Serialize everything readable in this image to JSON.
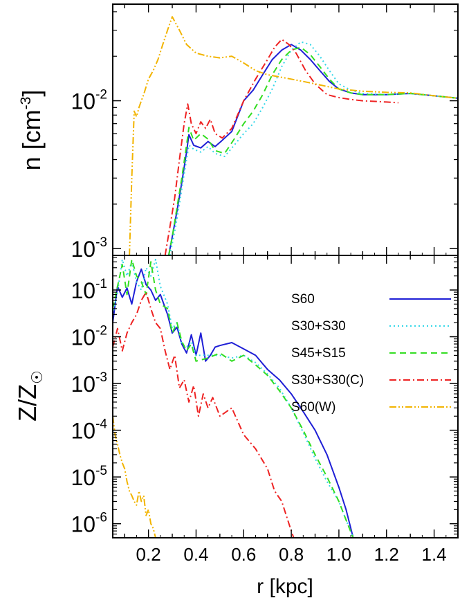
{
  "colors": {
    "S60": "#1f1fd6",
    "S30+S30": "#33d7e8",
    "S45+S15": "#33dd22",
    "S30+S30(C)": "#ee2222",
    "S60(W)": "#f2b400"
  },
  "chart_data": [
    {
      "type": "line",
      "panel": "top",
      "ylabel": "n [cm-3]",
      "ylabel_main": "n [cm",
      "ylabel_exp": "-3",
      "ylabel_close": "]",
      "yscale": "log",
      "ylim": [
        0.0009,
        0.045
      ],
      "xlim": [
        0.05,
        1.5
      ],
      "yticks": [
        {
          "value": 0.01,
          "base": "10",
          "exp": "-2"
        },
        {
          "value": 0.001,
          "base": "10",
          "exp": "-3"
        }
      ],
      "series": [
        {
          "name": "S60",
          "dash": "solid",
          "x": [
            0.285,
            0.3,
            0.32,
            0.34,
            0.36,
            0.37,
            0.39,
            0.42,
            0.45,
            0.48,
            0.51,
            0.55,
            0.6,
            0.64,
            0.68,
            0.72,
            0.76,
            0.8,
            0.84,
            0.88,
            0.92,
            0.96,
            1.0,
            1.05,
            1.1,
            1.2,
            1.3,
            1.4,
            1.5
          ],
          "y": [
            0.0009,
            0.0012,
            0.0018,
            0.0028,
            0.0045,
            0.0059,
            0.005,
            0.0048,
            0.0053,
            0.0049,
            0.0054,
            0.0062,
            0.01,
            0.0118,
            0.015,
            0.019,
            0.022,
            0.024,
            0.022,
            0.019,
            0.016,
            0.0135,
            0.012,
            0.0113,
            0.011,
            0.011,
            0.0112,
            0.0108,
            0.0104
          ]
        },
        {
          "name": "S30+S30",
          "dash": "dot",
          "x": [
            0.29,
            0.31,
            0.33,
            0.35,
            0.37,
            0.39,
            0.42,
            0.45,
            0.48,
            0.52,
            0.56,
            0.6,
            0.64,
            0.68,
            0.72,
            0.76,
            0.8,
            0.84,
            0.88,
            0.92,
            0.96,
            1.0,
            1.05,
            1.1,
            1.2,
            1.3,
            1.4,
            1.5
          ],
          "y": [
            0.0009,
            0.0013,
            0.002,
            0.0032,
            0.005,
            0.0047,
            0.0045,
            0.0049,
            0.0044,
            0.0042,
            0.005,
            0.006,
            0.007,
            0.009,
            0.012,
            0.017,
            0.022,
            0.025,
            0.024,
            0.02,
            0.016,
            0.013,
            0.0118,
            0.0112,
            0.011,
            0.0112,
            0.0108,
            0.0104
          ]
        },
        {
          "name": "S45+S15",
          "dash": "dash",
          "x": [
            0.285,
            0.3,
            0.32,
            0.34,
            0.36,
            0.37,
            0.39,
            0.42,
            0.45,
            0.48,
            0.52,
            0.56,
            0.6,
            0.64,
            0.68,
            0.72,
            0.76,
            0.8,
            0.84,
            0.88,
            0.92,
            0.96,
            1.0,
            1.05,
            1.1,
            1.2,
            1.3,
            1.4,
            1.5
          ],
          "y": [
            0.0009,
            0.0012,
            0.0019,
            0.003,
            0.005,
            0.0066,
            0.0054,
            0.006,
            0.0055,
            0.0046,
            0.0044,
            0.0055,
            0.007,
            0.0085,
            0.011,
            0.015,
            0.019,
            0.022,
            0.023,
            0.0205,
            0.017,
            0.014,
            0.012,
            0.0113,
            0.011,
            0.011,
            0.0112,
            0.0108,
            0.0104
          ]
        },
        {
          "name": "S30+S30(C)",
          "dash": "dashdot",
          "x": [
            0.27,
            0.29,
            0.31,
            0.33,
            0.35,
            0.365,
            0.38,
            0.4,
            0.42,
            0.44,
            0.46,
            0.48,
            0.51,
            0.55,
            0.6,
            0.65,
            0.7,
            0.73,
            0.76,
            0.79,
            0.82,
            0.86,
            0.9,
            0.95,
            1.0,
            1.05,
            1.1,
            1.2,
            1.25
          ],
          "y": [
            0.0009,
            0.0014,
            0.0022,
            0.004,
            0.007,
            0.0095,
            0.007,
            0.006,
            0.0072,
            0.0065,
            0.0075,
            0.006,
            0.0056,
            0.0065,
            0.01,
            0.014,
            0.019,
            0.023,
            0.026,
            0.024,
            0.021,
            0.016,
            0.013,
            0.011,
            0.0105,
            0.0102,
            0.01,
            0.0098,
            0.0097
          ]
        },
        {
          "name": "S60(W)",
          "dash": "dashdotdot",
          "x": [
            0.12,
            0.13,
            0.14,
            0.15,
            0.16,
            0.17,
            0.18,
            0.2,
            0.22,
            0.24,
            0.26,
            0.28,
            0.3,
            0.33,
            0.36,
            0.4,
            0.45,
            0.5,
            0.55,
            0.6,
            0.65,
            0.7,
            0.75,
            0.8,
            0.85,
            0.9,
            0.95,
            1.0,
            1.1,
            1.2,
            1.3,
            1.4,
            1.5
          ],
          "y": [
            0.0009,
            0.003,
            0.0085,
            0.0078,
            0.009,
            0.01,
            0.011,
            0.014,
            0.016,
            0.019,
            0.024,
            0.03,
            0.037,
            0.03,
            0.024,
            0.021,
            0.02,
            0.0195,
            0.02,
            0.018,
            0.016,
            0.015,
            0.0145,
            0.014,
            0.0135,
            0.013,
            0.0125,
            0.012,
            0.0116,
            0.0114,
            0.0113,
            0.0108,
            0.0104
          ]
        }
      ]
    },
    {
      "type": "line",
      "panel": "bottom",
      "ylabel": "Z/Z☉",
      "ylabel_main": "Z/Z",
      "ylabel_sub": "☉",
      "xlabel": "r [kpc]",
      "yscale": "log",
      "ylim": [
        5e-07,
        0.55
      ],
      "xlim": [
        0.05,
        1.5
      ],
      "xticks": [
        "0.2",
        "0.4",
        "0.6",
        "0.8",
        "1.0",
        "1.2",
        "1.4"
      ],
      "xtick_values": [
        0.2,
        0.4,
        0.6,
        0.8,
        1.0,
        1.2,
        1.4
      ],
      "yticks": [
        {
          "value": 0.1,
          "base": "10",
          "exp": "-1"
        },
        {
          "value": 0.01,
          "base": "10",
          "exp": "-2"
        },
        {
          "value": 0.001,
          "base": "10",
          "exp": "-3"
        },
        {
          "value": 0.0001,
          "base": "10",
          "exp": "-4"
        },
        {
          "value": 1e-05,
          "base": "10",
          "exp": "-5"
        },
        {
          "value": 1e-06,
          "base": "10",
          "exp": "-6"
        }
      ],
      "legend_placement": "top-right",
      "series": [
        {
          "name": "S60",
          "dash": "solid",
          "x": [
            0.05,
            0.07,
            0.09,
            0.11,
            0.13,
            0.15,
            0.17,
            0.19,
            0.21,
            0.23,
            0.25,
            0.28,
            0.3,
            0.32,
            0.34,
            0.36,
            0.38,
            0.4,
            0.42,
            0.44,
            0.46,
            0.48,
            0.5,
            0.55,
            0.6,
            0.65,
            0.7,
            0.75,
            0.8,
            0.85,
            0.9,
            0.95,
            1.0,
            1.03,
            1.06
          ],
          "y": [
            0.02,
            0.12,
            0.07,
            0.11,
            0.05,
            0.15,
            0.28,
            0.13,
            0.1,
            0.06,
            0.08,
            0.03,
            0.012,
            0.016,
            0.007,
            0.0045,
            0.011,
            0.004,
            0.012,
            0.003,
            0.004,
            0.006,
            0.0065,
            0.0075,
            0.0055,
            0.004,
            0.002,
            0.0012,
            0.0006,
            0.00025,
            0.0001,
            3e-05,
            6e-06,
            2e-06,
            5e-07
          ]
        },
        {
          "name": "S30+S30",
          "dash": "dot",
          "x": [
            0.05,
            0.07,
            0.09,
            0.11,
            0.13,
            0.15,
            0.17,
            0.19,
            0.21,
            0.23,
            0.25,
            0.28,
            0.3,
            0.32,
            0.34,
            0.36,
            0.38,
            0.4,
            0.45,
            0.5,
            0.55,
            0.6,
            0.65,
            0.7,
            0.75,
            0.8,
            0.85,
            0.9,
            0.95,
            1.0,
            1.03,
            1.06
          ],
          "y": [
            0.03,
            0.09,
            0.45,
            0.2,
            0.4,
            0.15,
            0.1,
            0.3,
            0.2,
            0.45,
            0.12,
            0.05,
            0.015,
            0.02,
            0.007,
            0.006,
            0.008,
            0.004,
            0.004,
            0.004,
            0.0035,
            0.004,
            0.0028,
            0.0016,
            0.0008,
            0.0003,
            9e-05,
            2.5e-05,
            8e-06,
            3e-06,
            1.2e-06,
            5e-07
          ]
        },
        {
          "name": "S45+S15",
          "dash": "dash",
          "x": [
            0.05,
            0.07,
            0.09,
            0.11,
            0.13,
            0.15,
            0.17,
            0.19,
            0.21,
            0.23,
            0.25,
            0.28,
            0.3,
            0.32,
            0.34,
            0.36,
            0.38,
            0.4,
            0.45,
            0.5,
            0.55,
            0.6,
            0.65,
            0.7,
            0.75,
            0.8,
            0.85,
            0.9,
            0.95,
            1.0,
            1.03,
            1.06
          ],
          "y": [
            0.04,
            0.12,
            0.35,
            0.08,
            0.45,
            0.2,
            0.15,
            0.08,
            0.4,
            0.1,
            0.05,
            0.04,
            0.012,
            0.02,
            0.008,
            0.005,
            0.007,
            0.003,
            0.0035,
            0.0045,
            0.003,
            0.004,
            0.0025,
            0.0015,
            0.0007,
            0.0003,
            0.0001,
            3e-05,
            1e-05,
            3e-06,
            1.2e-06,
            5e-07
          ]
        },
        {
          "name": "S30+S30(C)",
          "dash": "dashdot",
          "x": [
            0.05,
            0.07,
            0.09,
            0.11,
            0.13,
            0.15,
            0.17,
            0.19,
            0.21,
            0.23,
            0.25,
            0.27,
            0.29,
            0.31,
            0.33,
            0.35,
            0.37,
            0.39,
            0.41,
            0.43,
            0.45,
            0.47,
            0.5,
            0.55,
            0.6,
            0.65,
            0.7,
            0.73,
            0.76,
            0.79,
            0.81
          ],
          "y": [
            0.006,
            0.015,
            0.005,
            0.012,
            0.02,
            0.03,
            0.06,
            0.09,
            0.04,
            0.02,
            0.015,
            0.005,
            0.002,
            0.004,
            0.0008,
            0.0012,
            0.0004,
            0.0009,
            0.0002,
            0.0006,
            0.0003,
            0.0005,
            0.0002,
            0.0003,
            8e-05,
            4e-05,
            1.5e-05,
            5e-06,
            3e-06,
            1e-06,
            5e-07
          ]
        },
        {
          "name": "S60(W)",
          "dash": "dashdotdot",
          "x": [
            0.05,
            0.06,
            0.07,
            0.08,
            0.09,
            0.1,
            0.11,
            0.12,
            0.13,
            0.14,
            0.15,
            0.16,
            0.17,
            0.18,
            0.19,
            0.2,
            0.21,
            0.22,
            0.23
          ],
          "y": [
            0.0002,
            8e-05,
            5e-05,
            3e-05,
            2e-05,
            1.5e-05,
            8e-06,
            5e-06,
            4e-06,
            3e-06,
            2.5e-06,
            5e-06,
            3e-06,
            4e-06,
            1.5e-06,
            2e-06,
            1e-06,
            8e-07,
            5e-07
          ]
        }
      ]
    }
  ]
}
